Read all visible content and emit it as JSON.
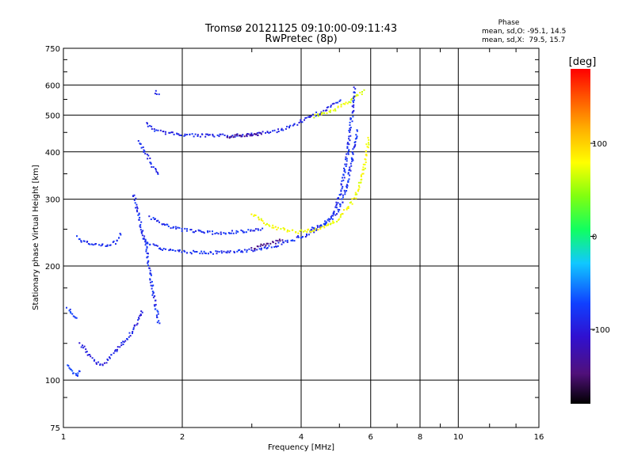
{
  "chart_data": {
    "type": "scatter",
    "title": "Tromsø 20121125 09:10:00-09:11:43",
    "subtitle": "RwPretec (8p)",
    "xlabel": "Frequency [MHz]",
    "ylabel": "Stationary phase Virtual Height [km]",
    "x_scale": "log",
    "y_scale": "log",
    "xlim": [
      1,
      16
    ],
    "ylim": [
      75,
      750
    ],
    "x_ticks": [
      1,
      2,
      4,
      6,
      8,
      10,
      16
    ],
    "x_tick_labels": [
      "1",
      "2",
      "4",
      "6",
      "8",
      "10",
      "16"
    ],
    "y_ticks": [
      75,
      100,
      200,
      300,
      400,
      500,
      600,
      750
    ],
    "y_tick_labels": [
      "75",
      "100",
      "200",
      "300",
      "400",
      "500",
      "600",
      "750"
    ],
    "grid": true,
    "stats": {
      "title": "Phase",
      "line_o": "mean, sd,O: -95.1, 14.5",
      "line_x": "mean, sd,X:  79.5, 15.7"
    },
    "colorbar": {
      "label": "[deg]",
      "range": [
        -180,
        180
      ],
      "ticks": [
        100,
        0,
        -100
      ],
      "tick_labels": [
        "100",
        "0",
        "-100"
      ]
    },
    "traces": [
      {
        "phase": -105,
        "points": [
          [
            1.62,
            480
          ],
          [
            1.66,
            465
          ],
          [
            1.72,
            458
          ],
          [
            1.8,
            452
          ],
          [
            1.9,
            448
          ],
          [
            2.0,
            446
          ],
          [
            2.15,
            444
          ],
          [
            2.35,
            443
          ],
          [
            2.6,
            443
          ],
          [
            2.85,
            445
          ],
          [
            3.1,
            448
          ],
          [
            3.35,
            453
          ],
          [
            3.6,
            462
          ],
          [
            3.85,
            475
          ],
          [
            4.05,
            488
          ],
          [
            4.25,
            500
          ],
          [
            4.45,
            510
          ],
          [
            4.65,
            522
          ],
          [
            4.85,
            537
          ],
          [
            5.05,
            550
          ]
        ]
      },
      {
        "phase": -140,
        "points": [
          [
            2.6,
            440
          ],
          [
            2.8,
            443
          ],
          [
            3.0,
            446
          ],
          [
            3.2,
            450
          ]
        ]
      },
      {
        "phase": 75,
        "points": [
          [
            4.3,
            498
          ],
          [
            4.5,
            505
          ],
          [
            4.75,
            515
          ],
          [
            5.0,
            530
          ],
          [
            5.25,
            545
          ],
          [
            5.5,
            560
          ],
          [
            5.65,
            575
          ],
          [
            5.75,
            590
          ]
        ]
      },
      {
        "phase": -100,
        "points": [
          [
            1.58,
            240
          ],
          [
            1.63,
            232
          ],
          [
            1.7,
            226
          ],
          [
            1.8,
            222
          ],
          [
            1.9,
            220
          ],
          [
            2.0,
            219
          ],
          [
            2.2,
            218
          ],
          [
            2.45,
            218
          ],
          [
            2.7,
            219
          ],
          [
            2.95,
            221
          ],
          [
            3.2,
            224
          ],
          [
            3.45,
            228
          ],
          [
            3.7,
            233
          ],
          [
            3.9,
            238
          ],
          [
            4.1,
            243
          ],
          [
            4.3,
            249
          ],
          [
            4.5,
            257
          ],
          [
            4.7,
            268
          ],
          [
            4.85,
            282
          ],
          [
            4.95,
            300
          ],
          [
            5.05,
            325
          ],
          [
            5.12,
            355
          ],
          [
            5.2,
            390
          ],
          [
            5.28,
            440
          ],
          [
            5.35,
            500
          ],
          [
            5.42,
            560
          ],
          [
            5.45,
            600
          ]
        ]
      },
      {
        "phase": -145,
        "points": [
          [
            3.0,
            224
          ],
          [
            3.3,
            230
          ],
          [
            3.6,
            236
          ]
        ]
      },
      {
        "phase": -100,
        "points": [
          [
            1.65,
            270
          ],
          [
            1.8,
            258
          ],
          [
            2.0,
            250
          ],
          [
            2.3,
            246
          ],
          [
            2.6,
            246
          ],
          [
            2.9,
            248
          ],
          [
            3.2,
            252
          ]
        ]
      },
      {
        "phase": -100,
        "points": [
          [
            4.2,
            250
          ],
          [
            4.45,
            256
          ],
          [
            4.7,
            265
          ],
          [
            4.9,
            278
          ],
          [
            5.05,
            295
          ],
          [
            5.15,
            315
          ],
          [
            5.25,
            340
          ],
          [
            5.35,
            380
          ],
          [
            5.45,
            420
          ],
          [
            5.52,
            460
          ]
        ]
      },
      {
        "phase": 80,
        "points": [
          [
            3.0,
            275
          ],
          [
            3.15,
            265
          ],
          [
            3.3,
            258
          ],
          [
            3.5,
            252
          ],
          [
            3.7,
            248
          ],
          [
            3.9,
            247
          ],
          [
            4.1,
            248
          ],
          [
            4.35,
            251
          ],
          [
            4.6,
            256
          ],
          [
            4.85,
            264
          ],
          [
            5.05,
            274
          ],
          [
            5.25,
            288
          ],
          [
            5.45,
            305
          ],
          [
            5.6,
            330
          ],
          [
            5.75,
            365
          ],
          [
            5.85,
            410
          ],
          [
            5.9,
            440
          ]
        ]
      },
      {
        "phase": -105,
        "points": [
          [
            1.55,
            430
          ],
          [
            1.6,
            400
          ],
          [
            1.65,
            380
          ],
          [
            1.7,
            360
          ],
          [
            1.75,
            350
          ]
        ]
      },
      {
        "phase": -105,
        "points": [
          [
            1.7,
            580
          ],
          [
            1.75,
            570
          ]
        ]
      },
      {
        "phase": -100,
        "points": [
          [
            1.5,
            310
          ],
          [
            1.52,
            290
          ],
          [
            1.55,
            270
          ],
          [
            1.57,
            250
          ],
          [
            1.6,
            235
          ],
          [
            1.62,
            220
          ],
          [
            1.64,
            200
          ],
          [
            1.66,
            185
          ],
          [
            1.68,
            170
          ],
          [
            1.7,
            160
          ],
          [
            1.72,
            150
          ],
          [
            1.74,
            140
          ]
        ]
      },
      {
        "phase": -100,
        "points": [
          [
            1.08,
            240
          ],
          [
            1.12,
            232
          ],
          [
            1.2,
            230
          ],
          [
            1.28,
            228
          ],
          [
            1.35,
            232
          ],
          [
            1.4,
            245
          ]
        ]
      },
      {
        "phase": -110,
        "points": [
          [
            1.1,
            125
          ],
          [
            1.15,
            118
          ],
          [
            1.2,
            112
          ],
          [
            1.25,
            110
          ],
          [
            1.3,
            115
          ],
          [
            1.35,
            120
          ],
          [
            1.4,
            125
          ],
          [
            1.45,
            130
          ],
          [
            1.5,
            138
          ],
          [
            1.55,
            145
          ],
          [
            1.58,
            155
          ]
        ]
      },
      {
        "phase": -90,
        "points": [
          [
            1.02,
            110
          ],
          [
            1.05,
            105
          ],
          [
            1.08,
            103
          ],
          [
            1.1,
            108
          ]
        ]
      },
      {
        "phase": -90,
        "points": [
          [
            1.02,
            155
          ],
          [
            1.05,
            150
          ],
          [
            1.08,
            145
          ]
        ]
      }
    ]
  }
}
